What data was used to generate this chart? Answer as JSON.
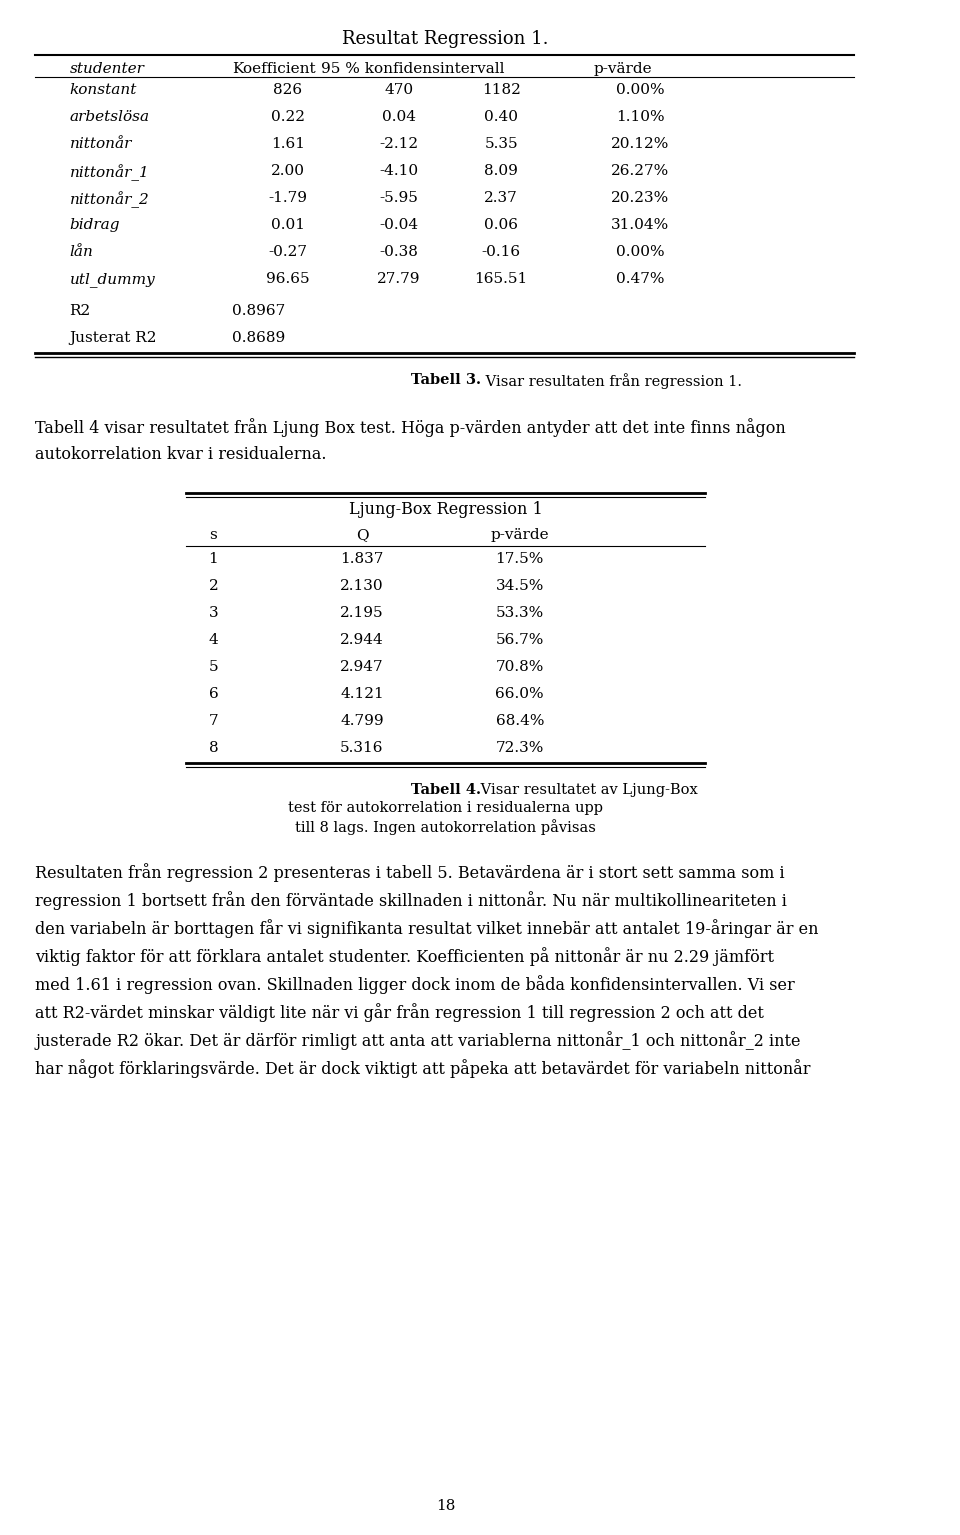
{
  "title1": "Resultat Regression 1.",
  "table1_headers": [
    "studenter",
    "Koefficient",
    "95 % konfidensintervall",
    "p-värde"
  ],
  "table1_rows": [
    [
      "konstant",
      "826",
      "470",
      "1182",
      "0.00%"
    ],
    [
      "arbetslösa",
      "0.22",
      "0.04",
      "0.40",
      "1.10%"
    ],
    [
      "nittonår",
      "1.61",
      "-2.12",
      "5.35",
      "20.12%"
    ],
    [
      "nittonår_1",
      "2.00",
      "-4.10",
      "8.09",
      "26.27%"
    ],
    [
      "nittonår_2",
      "-1.79",
      "-5.95",
      "2.37",
      "20.23%"
    ],
    [
      "bidrag",
      "0.01",
      "-0.04",
      "0.06",
      "31.04%"
    ],
    [
      "lån",
      "-0.27",
      "-0.38",
      "-0.16",
      "0.00%"
    ],
    [
      "utl_dummy",
      "96.65",
      "27.79",
      "165.51",
      "0.47%"
    ]
  ],
  "r2_label": "R2",
  "r2_value": "0.8967",
  "justerat_r2_label": "Justerat R2",
  "justerat_r2_value": "0.8689",
  "caption1": "Tabell 3. Visar resultaten från regression 1.",
  "paragraph1": "Tabell 4 visar resultatet från Ljung Box test. Höga p-värden antyder att det inte finns någon\nautokorrelation kvar i residualerna.",
  "title2": "Ljung-Box Regression 1",
  "table2_headers": [
    "s",
    "Q",
    "p-värde"
  ],
  "table2_rows": [
    [
      "1",
      "1.837",
      "17.5%"
    ],
    [
      "2",
      "2.130",
      "34.5%"
    ],
    [
      "3",
      "2.195",
      "53.3%"
    ],
    [
      "4",
      "2.944",
      "56.7%"
    ],
    [
      "5",
      "2.947",
      "70.8%"
    ],
    [
      "6",
      "4.121",
      "66.0%"
    ],
    [
      "7",
      "4.799",
      "68.4%"
    ],
    [
      "8",
      "5.316",
      "72.3%"
    ]
  ],
  "caption2_line1": "Tabell 4. Visar resultatet av Ljung-Box",
  "caption2_line2": "test för autokorrelation i residualerna upp",
  "caption2_line3": "till 8 lags. Ingen autokorrelation påvisas",
  "paragraph2": "Resultaten från regression 2 presenteras i tabell 5. Betavärdena är i stort sett samma som i\nregression 1 bortsett från den förväntade skillnaden i nittonår. Nu när multikollineariteten i\nden variabeln är borttagen får vi signifikanta resultat vilket innebär att antalet 19-åringar är en\nviktig faktor för att förklara antalet studenter. Koefficienten på nittonår är nu 2.29 jämfört\nmed 1.61 i regression ovan. Skillnaden ligger dock inom de båda konfidensintervallen. Vi ser\natt R2-värdet minskar väldigt lite när vi går från regression 1 till regression 2 och att det\njusterade R2 ökar. Det är därför rimligt att anta att variablerna nittonår_1 och nittonår_2 inte\nhar något förklaringsvärde. Det är dock viktigt att påpeka att betavärdet för variabeln nittonår",
  "page_number": "18",
  "bg_color": "#ffffff",
  "text_color": "#000000"
}
